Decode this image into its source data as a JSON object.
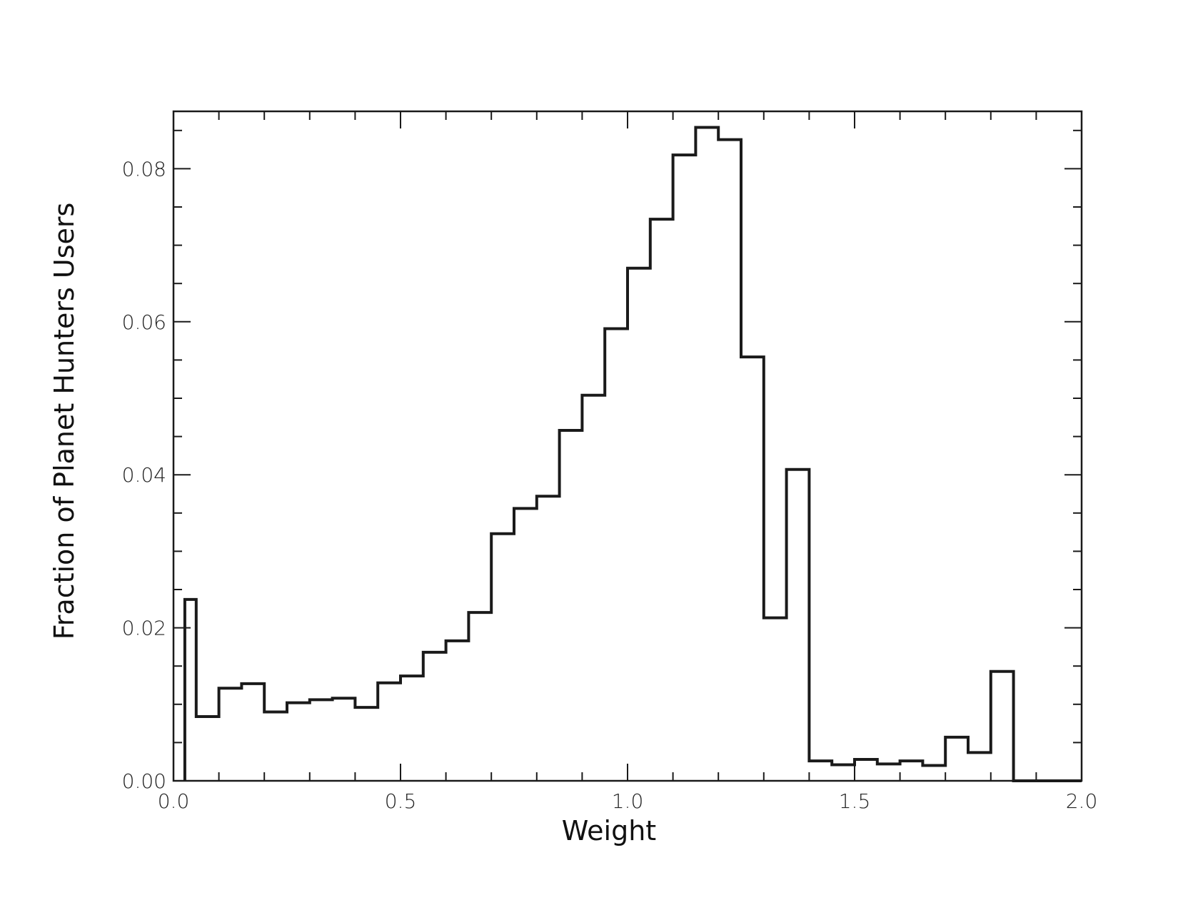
{
  "chart_data": {
    "type": "bar",
    "style": "step-histogram",
    "title": "",
    "xlabel": "Weight",
    "ylabel": "Fraction of Planet Hunters Users",
    "xlim": [
      0.0,
      2.0
    ],
    "ylim": [
      0.0,
      0.0875
    ],
    "x_ticks": [
      "0.0",
      "0.5",
      "1.0",
      "1.5",
      "2.0"
    ],
    "y_ticks": [
      "0.00",
      "0.02",
      "0.04",
      "0.06",
      "0.08"
    ],
    "bin_width": 0.05,
    "bin_starts": [
      0.025,
      0.05,
      0.1,
      0.15,
      0.2,
      0.25,
      0.3,
      0.35,
      0.4,
      0.45,
      0.5,
      0.55,
      0.6,
      0.65,
      0.7,
      0.75,
      0.8,
      0.85,
      0.9,
      0.95,
      1.0,
      1.05,
      1.1,
      1.15,
      1.2,
      1.25,
      1.3,
      1.35,
      1.4,
      1.45,
      1.5,
      1.55,
      1.6,
      1.65,
      1.7,
      1.75,
      1.8,
      1.85,
      1.9,
      1.95
    ],
    "bin_ends": [
      0.05,
      0.1,
      0.15,
      0.2,
      0.25,
      0.3,
      0.35,
      0.4,
      0.45,
      0.5,
      0.55,
      0.6,
      0.65,
      0.7,
      0.75,
      0.8,
      0.85,
      0.9,
      0.95,
      1.0,
      1.05,
      1.1,
      1.15,
      1.2,
      1.25,
      1.3,
      1.35,
      1.4,
      1.45,
      1.5,
      1.55,
      1.6,
      1.65,
      1.7,
      1.75,
      1.8,
      1.85,
      1.9,
      1.95,
      2.0
    ],
    "values": [
      0.0237,
      0.0084,
      0.0121,
      0.0127,
      0.009,
      0.0102,
      0.0106,
      0.0108,
      0.0096,
      0.0128,
      0.0137,
      0.0168,
      0.0183,
      0.022,
      0.0323,
      0.0356,
      0.0372,
      0.0458,
      0.0504,
      0.0591,
      0.067,
      0.0734,
      0.0818,
      0.0854,
      0.0838,
      0.0554,
      0.0213,
      0.0407,
      0.0026,
      0.0021,
      0.0028,
      0.0022,
      0.0026,
      0.002,
      0.0057,
      0.0037,
      0.0143,
      0.0,
      0.0,
      0.0
    ],
    "grid": false,
    "legend": "none",
    "line_color": "#1a1a1a"
  }
}
